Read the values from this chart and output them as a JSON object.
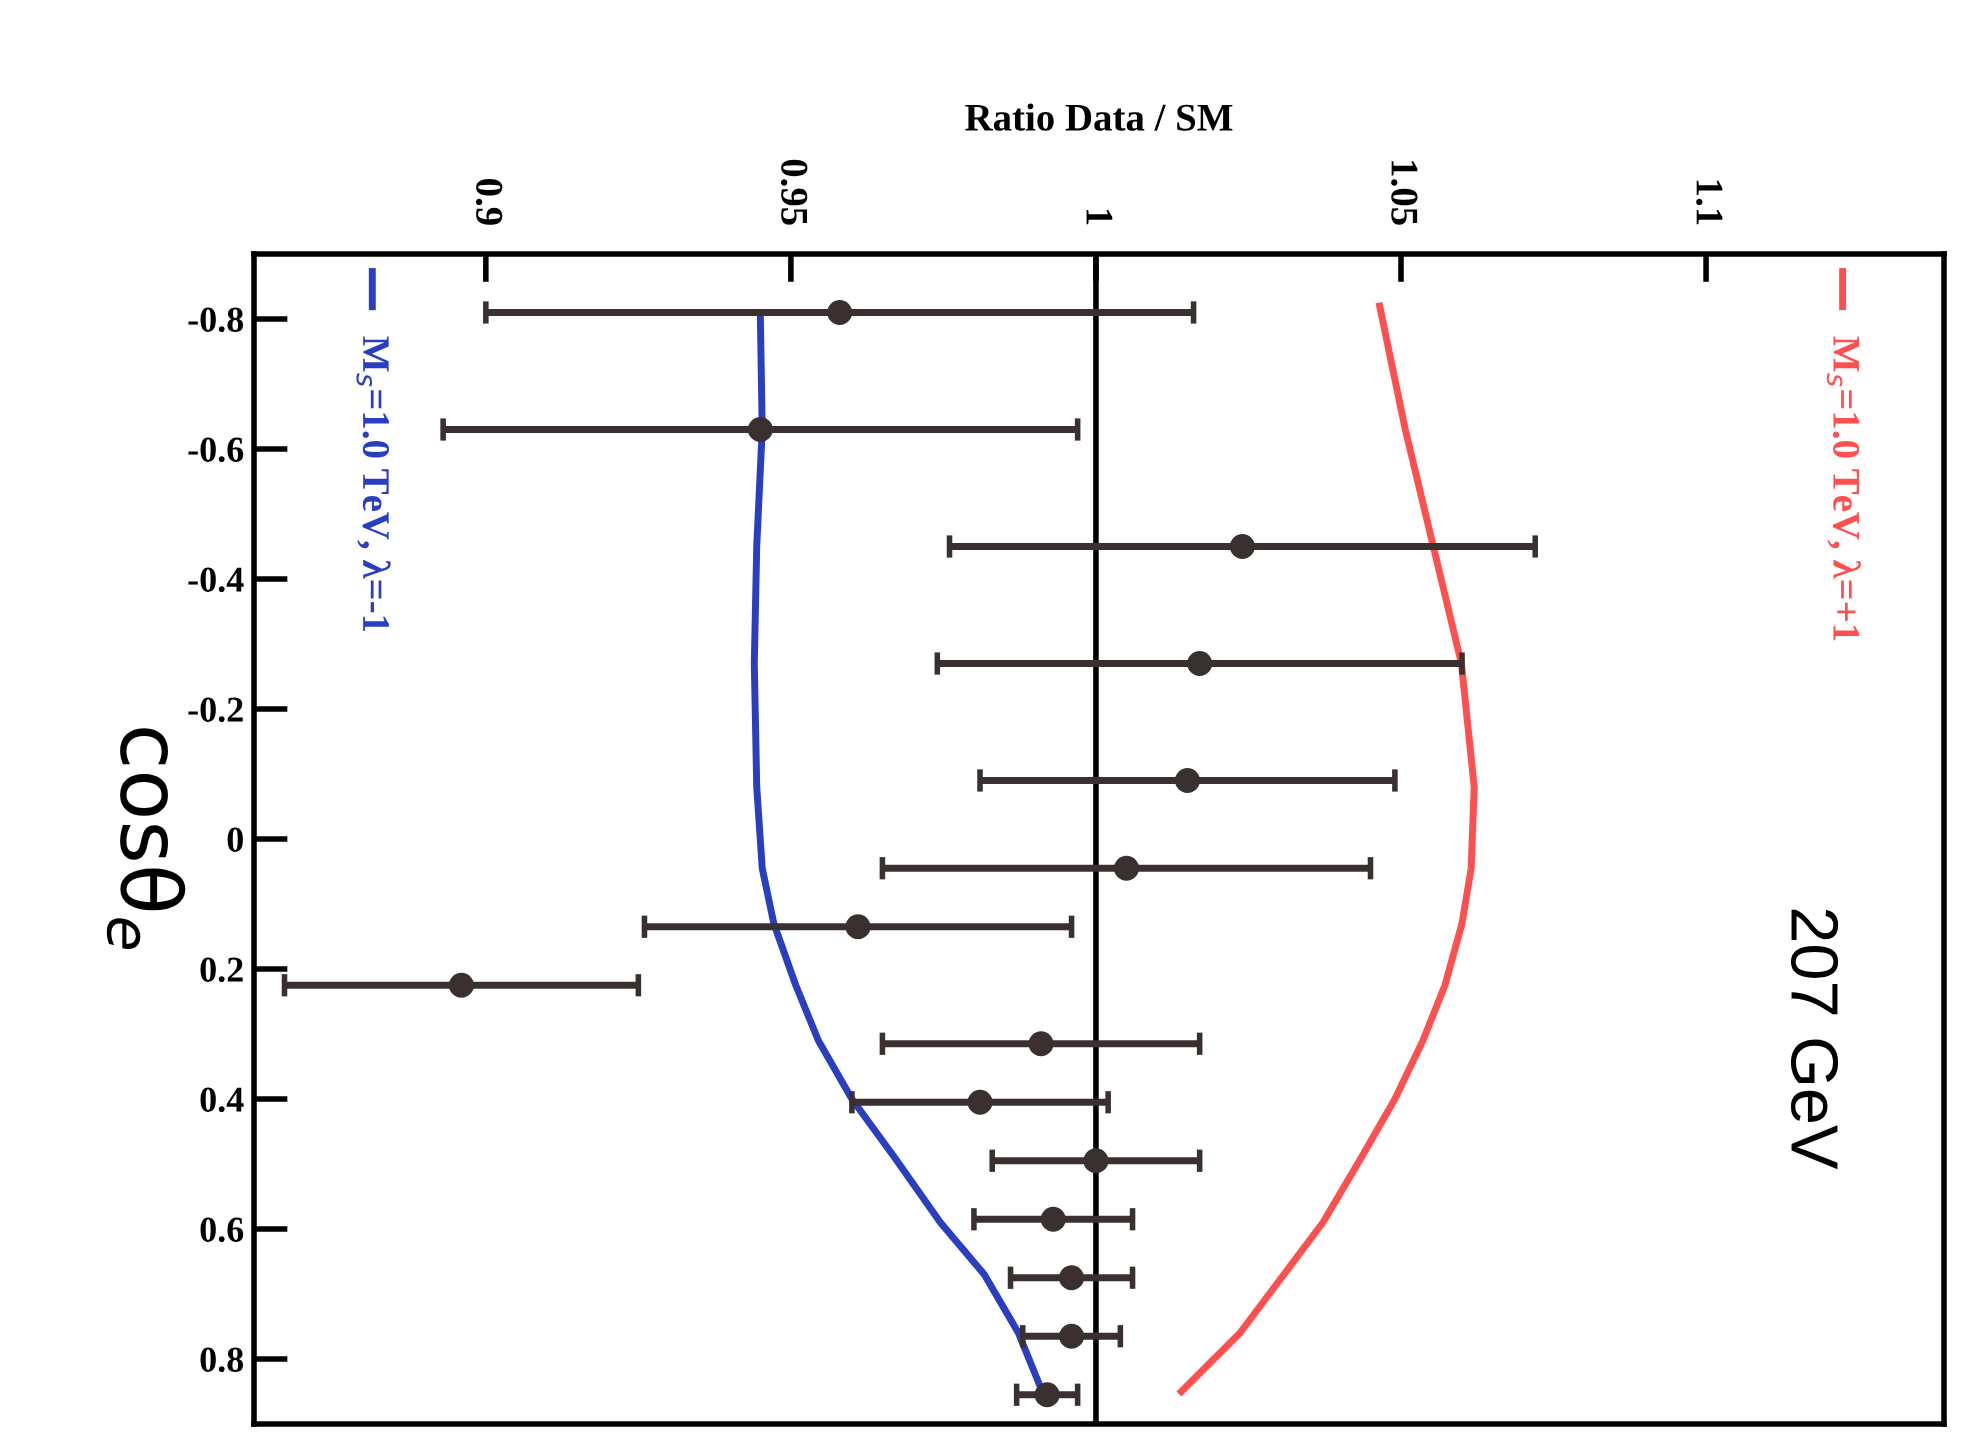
{
  "chart_data": {
    "type": "scatter",
    "xlabel": "Ratio Data / SM",
    "ylabel": "cosθ$_{e}$",
    "annotations": [
      "207 GeV"
    ],
    "xlim": [
      0.862,
      1.139
    ],
    "xticks": [
      0.9,
      0.95,
      1,
      1.05,
      1.1
    ],
    "ylim": [
      0.9,
      -0.9
    ],
    "yticks": [
      -0.8,
      -0.6,
      -0.4,
      -0.2,
      0,
      0.2,
      0.4,
      0.6,
      0.8
    ],
    "ref_lines": [
      {
        "axis": "x",
        "value": 1,
        "color": "#000000"
      }
    ],
    "marker": "circle",
    "legend": "top",
    "series": [
      {
        "color": "#3a3030",
        "x": [
          0.958,
          0.945,
          1.024,
          1.017,
          1.015,
          1.005,
          0.961,
          0.896,
          0.991,
          0.981,
          1.0,
          0.993,
          0.996,
          0.996,
          0.992
        ],
        "values": [
          -0.81,
          -0.63,
          -0.45,
          -0.27,
          -0.09,
          0.045,
          0.135,
          0.225,
          0.315,
          0.405,
          0.495,
          0.585,
          0.675,
          0.765,
          0.855
        ],
        "xerrors": [
          0.058,
          0.052,
          0.048,
          0.043,
          0.034,
          0.04,
          0.035,
          0.029,
          0.026,
          0.021,
          0.017,
          0.013,
          0.01,
          0.008,
          0.005
        ]
      },
      {
        "type": "line",
        "marker": "none",
        "name": "M$_{s}$=1.0 TeV, λ=+1",
        "color": "#ff5050",
        "x": [
          1.0465,
          1.0507,
          1.0553,
          1.0599,
          1.062,
          1.0615,
          1.06,
          1.0572,
          1.0536,
          1.049,
          1.0435,
          1.0372,
          1.0308,
          1.0236,
          1.014
        ],
        "values": [
          -0.82,
          -0.63,
          -0.45,
          -0.27,
          -0.08,
          0.045,
          0.13,
          0.225,
          0.31,
          0.4,
          0.49,
          0.59,
          0.67,
          0.76,
          0.85
        ]
      },
      {
        "type": "line",
        "marker": "none",
        "name": "M$_{s}$=1.0 TeV, λ=-1",
        "color": "#2a3fc0",
        "x": [
          0.945,
          0.9453,
          0.9444,
          0.944,
          0.9444,
          0.9453,
          0.9472,
          0.9508,
          0.9545,
          0.96,
          0.967,
          0.9745,
          0.9817,
          0.9873,
          0.9912
        ],
        "values": [
          -0.8,
          -0.63,
          -0.45,
          -0.27,
          -0.08,
          0.045,
          0.13,
          0.225,
          0.31,
          0.4,
          0.49,
          0.59,
          0.67,
          0.76,
          0.85
        ]
      }
    ]
  }
}
